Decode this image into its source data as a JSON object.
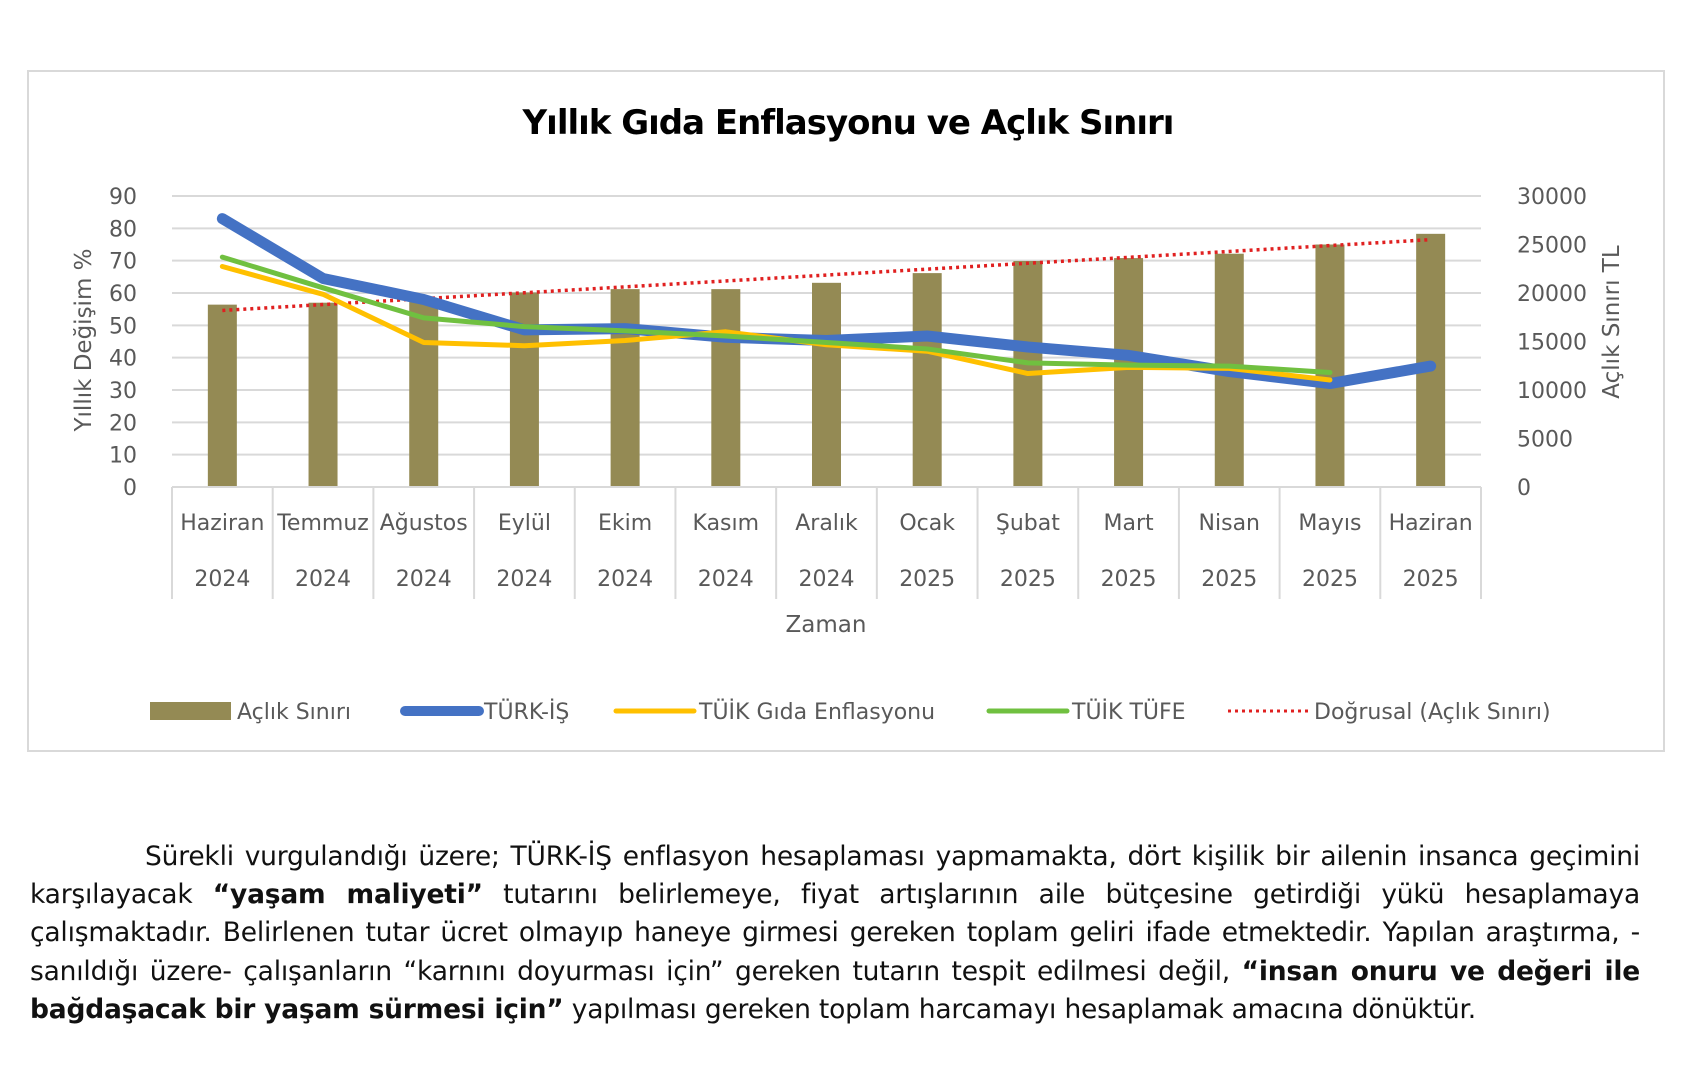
{
  "chart_data": {
    "type": "bar+line",
    "title": "Yıllık Gıda Enflasyonu ve Açlık Sınırı",
    "xlabel": "Zaman",
    "ylabel_left": "Yıllık Değişim %",
    "ylabel_right": "Açlık Sınırı TL",
    "ylim_left": [
      0,
      90
    ],
    "yticks_left": [
      0,
      10,
      20,
      30,
      40,
      50,
      60,
      70,
      80,
      90
    ],
    "ylim_right": [
      0,
      30000
    ],
    "yticks_right": [
      0,
      5000,
      10000,
      15000,
      20000,
      25000,
      30000
    ],
    "grid": true,
    "legend_position": "bottom",
    "categories": [
      {
        "month": "Haziran",
        "year": "2024"
      },
      {
        "month": "Temmuz",
        "year": "2024"
      },
      {
        "month": "Ağustos",
        "year": "2024"
      },
      {
        "month": "Eylül",
        "year": "2024"
      },
      {
        "month": "Ekim",
        "year": "2024"
      },
      {
        "month": "Kasım",
        "year": "2024"
      },
      {
        "month": "Aralık",
        "year": "2024"
      },
      {
        "month": "Ocak",
        "year": "2025"
      },
      {
        "month": "Şubat",
        "year": "2025"
      },
      {
        "month": "Mart",
        "year": "2025"
      },
      {
        "month": "Nisan",
        "year": "2025"
      },
      {
        "month": "Mayıs",
        "year": "2025"
      },
      {
        "month": "Haziran",
        "year": "2025"
      }
    ],
    "series": [
      {
        "name": "Açlık Sınırı",
        "type": "bar",
        "axis": "right",
        "color": "#948A54",
        "values": [
          18800,
          19000,
          19200,
          20050,
          20400,
          20400,
          21050,
          22050,
          23300,
          23600,
          24050,
          25000,
          26100
        ]
      },
      {
        "name": "TÜRK-İŞ",
        "type": "line",
        "axis": "left",
        "color": "#4472C4",
        "width": 11,
        "values": [
          83,
          64.5,
          58,
          48.6,
          49,
          46.3,
          45.3,
          46.7,
          43.3,
          40.7,
          35.7,
          32,
          37.4
        ]
      },
      {
        "name": "TÜİK Gıda Enflasyonu",
        "type": "line",
        "axis": "left",
        "color": "#FFC000",
        "width": 5,
        "values": [
          68.2,
          59.6,
          44.7,
          43.7,
          45.3,
          48,
          44,
          42,
          35.1,
          37,
          36.7,
          33.1,
          null
        ]
      },
      {
        "name": "TÜİK TÜFE",
        "type": "line",
        "axis": "left",
        "color": "#70C040",
        "width": 5,
        "values": [
          71.1,
          61.6,
          52.3,
          49.6,
          48.3,
          46.7,
          44.7,
          42.7,
          38.4,
          37.7,
          37.4,
          35.4,
          null
        ]
      },
      {
        "name": "Doğrusal (Açlık Sınırı)",
        "type": "trendline",
        "axis": "right",
        "color": "#E02020",
        "dash": "dotted",
        "start": 18200,
        "end": 25500
      }
    ]
  },
  "paragraph": {
    "segments": [
      {
        "text": "Sürekli vurgulandığı üzere; TÜRK-İŞ enflasyon hesaplaması yapmamakta, dört kişilik bir ailenin insanca geçimini karşılayacak ",
        "bold": false
      },
      {
        "text": "“yaşam maliyeti”",
        "bold": true
      },
      {
        "text": " tutarını belirlemeye, fiyat artışlarının aile bütçesine getirdiği yükü hesaplamaya çalışmaktadır. Belirlenen tutar ücret olmayıp haneye girmesi gereken toplam geliri ifade etmektedir. Yapılan araştırma, -sanıldığı üzere- çalışanların “karnını doyurması için” gereken tutarın tespit edilmesi değil, ",
        "bold": false
      },
      {
        "text": "“insan onuru ve değeri ile bağdaşacak bir yaşam sürmesi için”",
        "bold": true
      },
      {
        "text": " yapılması gereken toplam harcamayı hesaplamak amacına dönüktür.",
        "bold": false
      }
    ]
  }
}
